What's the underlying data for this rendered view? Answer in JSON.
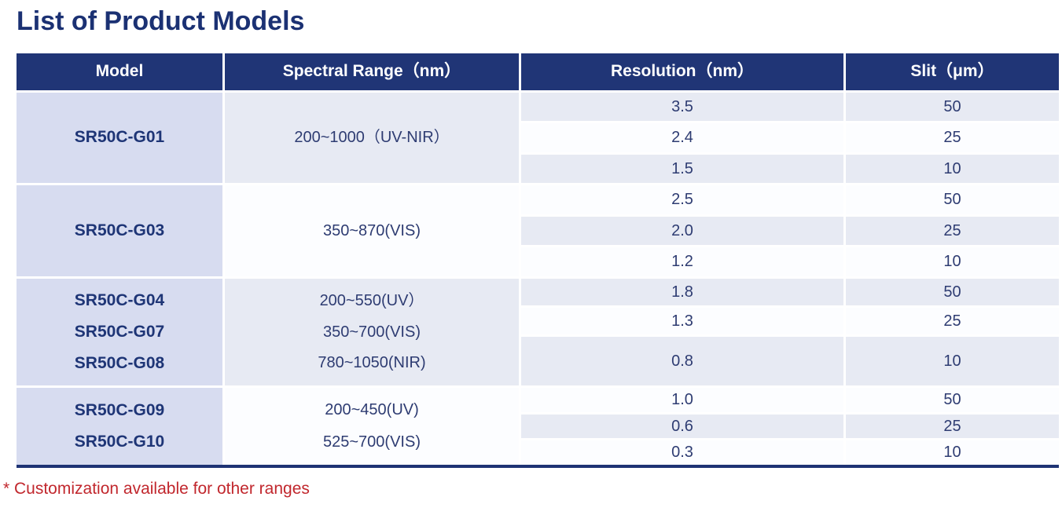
{
  "page": {
    "title": "List of Product Models",
    "footnote": "* Customization available for other ranges"
  },
  "colors": {
    "title_text": "#1b3173",
    "header_bg": "#203576",
    "header_text": "#ffffff",
    "model_cell_bg": "#d7dcf0",
    "model_text": "#1e3576",
    "row_gray_bg": "#e7eaf3",
    "row_white_bg": "#fcfdff",
    "body_text": "#2e3c72",
    "bottom_rule": "#1e3374",
    "footnote_text": "#c1272d"
  },
  "table": {
    "headers": [
      "Model",
      "Spectral Range（nm）",
      "Resolution（nm）",
      "Slit（μm）"
    ],
    "groups": [
      {
        "models": [
          "SR50C-G01"
        ],
        "spectral_ranges": [
          "200~1000（UV-NIR）"
        ],
        "rows": [
          {
            "resolution": "3.5",
            "slit": "50"
          },
          {
            "resolution": "2.4",
            "slit": "25"
          },
          {
            "resolution": "1.5",
            "slit": "10"
          }
        ]
      },
      {
        "models": [
          "SR50C-G03"
        ],
        "spectral_ranges": [
          "350~870(VIS)"
        ],
        "rows": [
          {
            "resolution": "2.5",
            "slit": "50"
          },
          {
            "resolution": "2.0",
            "slit": "25"
          },
          {
            "resolution": "1.2",
            "slit": "10"
          }
        ]
      },
      {
        "models": [
          "SR50C-G04",
          "SR50C-G07",
          "SR50C-G08"
        ],
        "spectral_ranges": [
          "200~550(UV）",
          "350~700(VIS)",
          "780~1050(NIR)"
        ],
        "rows": [
          {
            "resolution": "1.8",
            "slit": "50"
          },
          {
            "resolution": "1.3",
            "slit": "25"
          },
          {
            "resolution": "0.8",
            "slit": "10"
          }
        ]
      },
      {
        "models": [
          "SR50C-G09",
          "SR50C-G10"
        ],
        "spectral_ranges": [
          "200~450(UV)",
          "525~700(VIS)"
        ],
        "rows": [
          {
            "resolution": "1.0",
            "slit": "50"
          },
          {
            "resolution": "0.6",
            "slit": "25"
          },
          {
            "resolution": "0.3",
            "slit": "10"
          }
        ]
      }
    ]
  }
}
